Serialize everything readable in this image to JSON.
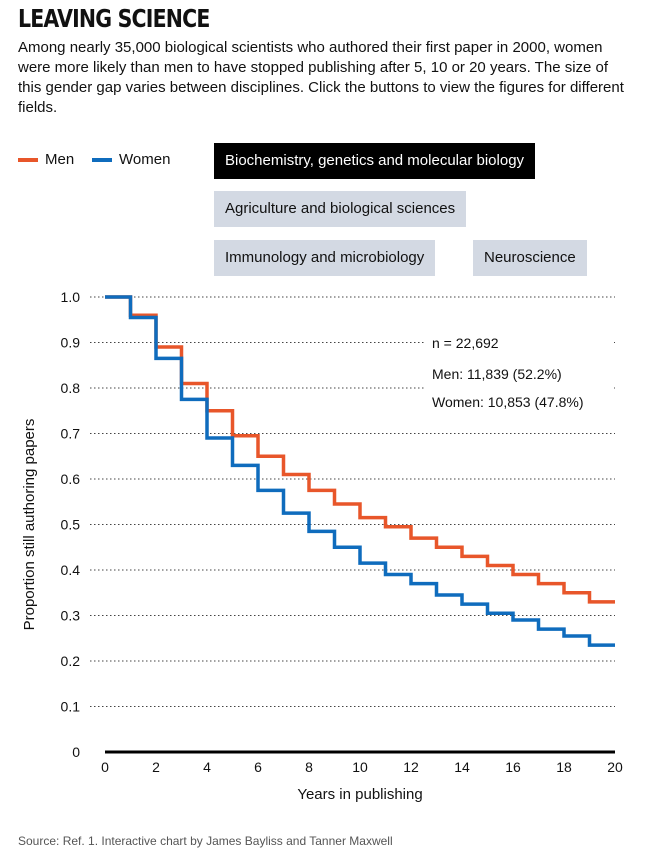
{
  "title": "LEAVING SCIENCE",
  "subtitle": "Among nearly 35,000 biological scientists who authored their first paper in 2000, women were more likely than men to have stopped publishing after 5, 10 or 20 years. The size of this gender gap varies between disciplines. Click the buttons to view the figures for different fields.",
  "legend": {
    "men": "Men",
    "women": "Women"
  },
  "colors": {
    "men": "#e8562a",
    "women": "#0f6cbd",
    "active_button": "#000000",
    "button": "#d3d9e3"
  },
  "buttons": {
    "biochem": "Biochemistry, genetics and molecular biology",
    "agri": "Agriculture and biological sciences",
    "immuno": "Immunology and microbiology",
    "neuro": "Neuroscience",
    "active": "biochem"
  },
  "annotation": {
    "n": "n = 22,692",
    "men": "Men: 11,839 (52.2%)",
    "women": "Women: 10,853 (47.8%)"
  },
  "source": "Source: Ref. 1. Interactive chart by James Bayliss and Tanner Maxwell",
  "chart_data": {
    "type": "line",
    "step": true,
    "xlabel": "Years in publishing",
    "ylabel": "Proportion still authoring papers",
    "xlim": [
      0,
      20
    ],
    "ylim": [
      0,
      1.0
    ],
    "x_ticks": [
      0,
      2,
      4,
      6,
      8,
      10,
      12,
      14,
      16,
      18,
      20
    ],
    "x_tick_labels": [
      "0",
      "2",
      "4",
      "6",
      "8",
      "10",
      "12",
      "14",
      "16",
      "18",
      "20"
    ],
    "y_ticks": [
      0,
      0.1,
      0.2,
      0.3,
      0.4,
      0.5,
      0.6,
      0.7,
      0.8,
      0.9,
      1.0
    ],
    "y_tick_labels": [
      "0",
      "0.1",
      "0.2",
      "0.3",
      "0.4",
      "0.5",
      "0.6",
      "0.7",
      "0.8",
      "0.9",
      "1.0"
    ],
    "grid": "horizontal dotted",
    "x": [
      0,
      1,
      2,
      3,
      4,
      5,
      6,
      7,
      8,
      9,
      10,
      11,
      12,
      13,
      14,
      15,
      16,
      17,
      18,
      19,
      20
    ],
    "series": [
      {
        "name": "Men",
        "color": "#e8562a",
        "values": [
          1.0,
          0.96,
          0.89,
          0.81,
          0.75,
          0.695,
          0.65,
          0.61,
          0.575,
          0.545,
          0.515,
          0.495,
          0.47,
          0.45,
          0.43,
          0.41,
          0.39,
          0.37,
          0.35,
          0.33,
          0.33
        ]
      },
      {
        "name": "Women",
        "color": "#0f6cbd",
        "values": [
          1.0,
          0.955,
          0.865,
          0.775,
          0.69,
          0.63,
          0.575,
          0.525,
          0.485,
          0.45,
          0.415,
          0.39,
          0.37,
          0.345,
          0.325,
          0.305,
          0.29,
          0.27,
          0.255,
          0.235,
          0.235
        ]
      }
    ]
  }
}
